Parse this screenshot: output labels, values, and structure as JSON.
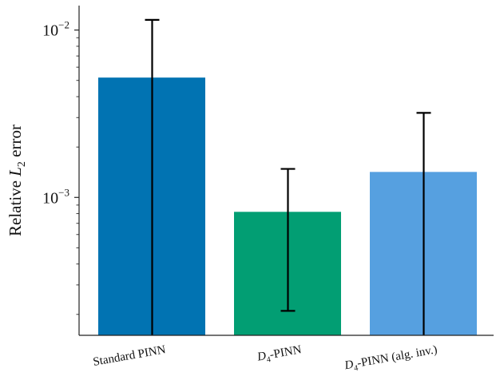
{
  "chart_data": {
    "type": "bar",
    "title": "",
    "xlabel": "",
    "ylabel": {
      "prefix": "Relative ",
      "symbol": "L",
      "subscript": "2",
      "suffix": " error"
    },
    "yscale": "log",
    "ylim": [
      0.00015,
      0.014
    ],
    "yticks": [
      {
        "value": 0.01,
        "base": "10",
        "exponent": "−2"
      },
      {
        "value": 0.001,
        "base": "10",
        "exponent": "−3"
      }
    ],
    "minor_ticks": true,
    "grid": false,
    "legend": "none",
    "categories": [
      {
        "main": "Standard PINN",
        "sub": "",
        "tail": ""
      },
      {
        "main": "D",
        "sub": "4",
        "tail": "-PINN"
      },
      {
        "main": "D",
        "sub": "4",
        "tail": "-PINN (alg. inv.)"
      }
    ],
    "values": [
      0.0052,
      0.00082,
      0.00142
    ],
    "error_low": [
      0.00015,
      0.00021,
      0.00015
    ],
    "error_high": [
      0.0115,
      0.00148,
      0.0032
    ],
    "colors": [
      "#0173b2",
      "#029e73",
      "#56a0e0"
    ]
  }
}
